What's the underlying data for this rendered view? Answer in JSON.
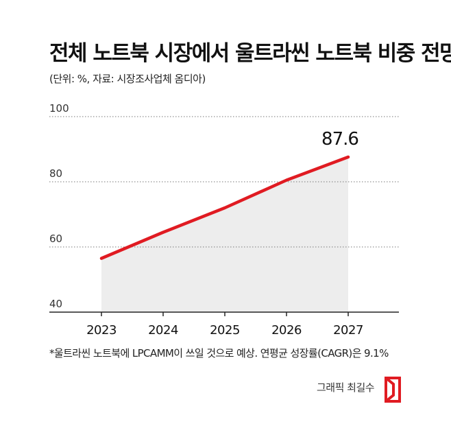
{
  "header": {
    "title": "전체 노트북 시장에서 울트라씬 노트북 비중 전망",
    "subtitle": "(단위: %, 자료: 시장조사업체 옴디아)"
  },
  "chart_data": {
    "type": "area",
    "x": [
      "2023",
      "2024",
      "2025",
      "2026",
      "2027"
    ],
    "series": [
      {
        "values": [
          56.5,
          64.5,
          72,
          80.5,
          87.6
        ]
      }
    ],
    "ylim": [
      40,
      100
    ],
    "yticks": [
      "40",
      "60",
      "80",
      "100"
    ],
    "annotation": "87.6",
    "grid": true,
    "line_color": "#e01b22",
    "fill_color": "#ededed"
  },
  "footnote": "*울트라씬 노트북에 LPCAMM이 쓰일 것으로 예상. 연평균 성장률(CAGR)은 9.1%",
  "credit": "그래픽 최길수",
  "colors": {
    "accent": "#e01b22",
    "grid": "#777777",
    "axis": "#222222"
  },
  "logo_icon": "red-bracket-logo-icon"
}
